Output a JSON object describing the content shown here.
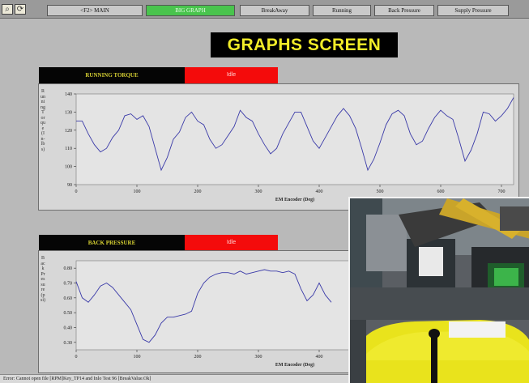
{
  "toolbar": {
    "icons": [
      "search-icon",
      "refresh-icon"
    ],
    "tabs": [
      {
        "label": "<F2> MAIN",
        "active": false
      },
      {
        "label": "BIG GRAPH",
        "active": true
      },
      {
        "label": "BreakAway",
        "active": false
      },
      {
        "label": "Running",
        "active": false
      },
      {
        "label": "Back Pressure",
        "active": false
      },
      {
        "label": "Supply Pressure",
        "active": false
      }
    ]
  },
  "screen_title": "GRAPHS SCREEN",
  "graphs": [
    {
      "header": "RUNNING TORQUE",
      "status": "Idle",
      "ylabel": "Running Torque (In-lbs)",
      "xlabel": "EM Encoder (Deg)",
      "chart_data": {
        "type": "line",
        "xlabel": "EM Encoder (Deg)",
        "ylabel": "Running Torque (In-lbs)",
        "xlim": [
          0,
          720
        ],
        "ylim": [
          90,
          140
        ],
        "xticks": [
          0,
          100,
          200,
          300,
          400,
          500,
          600,
          700
        ],
        "yticks": [
          90,
          100,
          110,
          120,
          130,
          140
        ],
        "series": [
          {
            "x": [
              0,
              10,
              20,
              30,
              40,
              50,
              60,
              70,
              80,
              90,
              100,
              110,
              120,
              130,
              140,
              150,
              160,
              170,
              180,
              190,
              200,
              210,
              220,
              230,
              240,
              250,
              260,
              270,
              280,
              290,
              300,
              310,
              320,
              330,
              340,
              350,
              360,
              370,
              380,
              390,
              400,
              410,
              420,
              430,
              440,
              450,
              460,
              470,
              480,
              490,
              500,
              510,
              520,
              530,
              540,
              550,
              560,
              570,
              580,
              590,
              600,
              610,
              620,
              630,
              640,
              650,
              660,
              670,
              680,
              690,
              700,
              710,
              720
            ],
            "y": [
              125,
              125,
              118,
              112,
              108,
              110,
              116,
              120,
              128,
              129,
              126,
              128,
              122,
              110,
              98,
              105,
              115,
              119,
              127,
              130,
              125,
              123,
              115,
              110,
              112,
              117,
              122,
              131,
              127,
              125,
              118,
              112,
              107,
              110,
              118,
              124,
              130,
              130,
              122,
              114,
              110,
              116,
              122,
              128,
              132,
              128,
              121,
              110,
              98,
              104,
              113,
              123,
              129,
              131,
              128,
              118,
              112,
              114,
              121,
              127,
              131,
              128,
              126,
              115,
              103,
              109,
              118,
              130,
              129,
              125,
              128,
              132,
              138
            ]
          }
        ]
      }
    },
    {
      "header": "BACK PRESSURE",
      "status": "Idle",
      "ylabel": "Back Pressure (psi)",
      "xlabel": "EM Encoder (Deg)",
      "chart_data": {
        "type": "line",
        "xlabel": "EM Encoder (Deg)",
        "ylabel": "Back Pressure (psi)",
        "xlim": [
          0,
          720
        ],
        "ylim": [
          0.25,
          0.85
        ],
        "xticks": [
          0,
          100,
          200,
          300,
          400
        ],
        "yticks": [
          0.3,
          0.4,
          0.5,
          0.6,
          0.7,
          0.8
        ],
        "series": [
          {
            "x": [
              0,
              10,
              20,
              30,
              40,
              50,
              60,
              70,
              80,
              90,
              100,
              110,
              120,
              130,
              140,
              150,
              160,
              170,
              180,
              190,
              200,
              210,
              220,
              230,
              240,
              250,
              260,
              270,
              280,
              290,
              300,
              310,
              320,
              330,
              340,
              350,
              360,
              370,
              380,
              390,
              400,
              410,
              420
            ],
            "y": [
              0.71,
              0.6,
              0.57,
              0.62,
              0.68,
              0.7,
              0.67,
              0.62,
              0.57,
              0.52,
              0.42,
              0.32,
              0.3,
              0.35,
              0.43,
              0.47,
              0.47,
              0.48,
              0.49,
              0.51,
              0.63,
              0.7,
              0.74,
              0.76,
              0.77,
              0.77,
              0.76,
              0.78,
              0.76,
              0.77,
              0.78,
              0.79,
              0.78,
              0.78,
              0.77,
              0.78,
              0.76,
              0.66,
              0.58,
              0.62,
              0.7,
              0.62,
              0.57
            ]
          }
        ]
      }
    }
  ],
  "status_bar": "Error: Cannot open file [RPM]Key_TP14 and Inlo Test 96 [BreakValue.Ok]"
}
